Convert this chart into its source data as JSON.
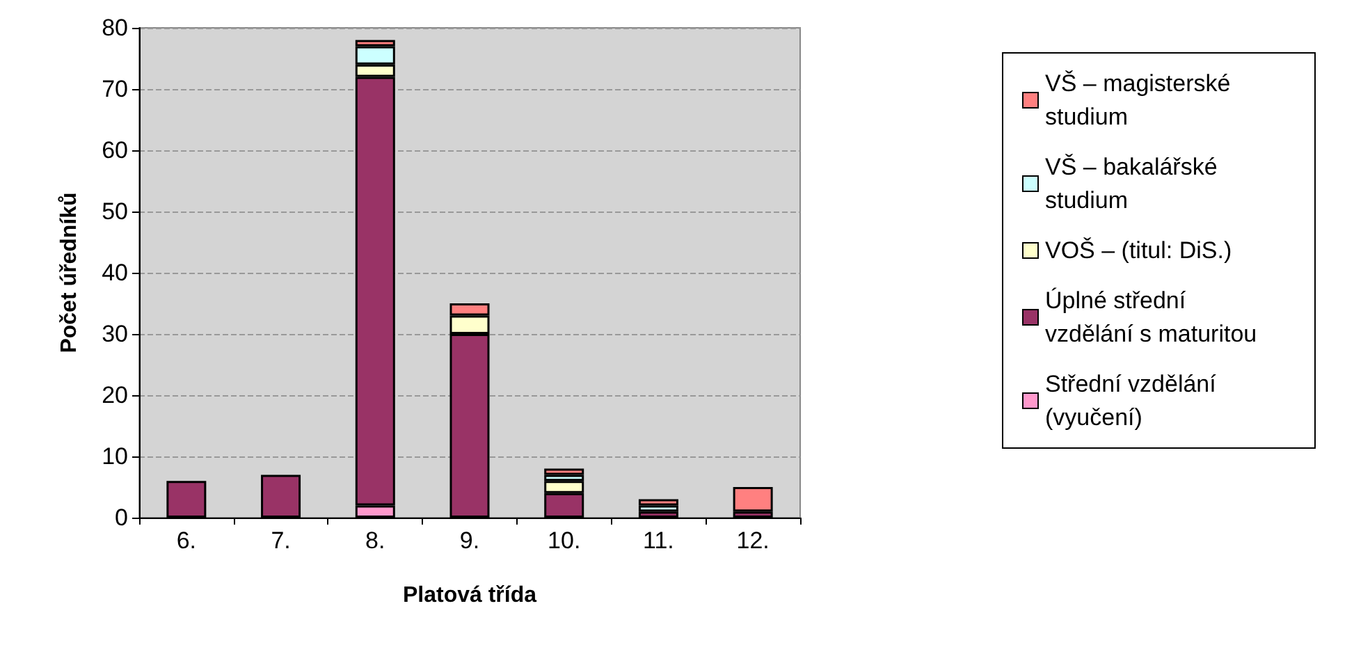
{
  "chart_data": {
    "type": "bar",
    "stacked": true,
    "xlabel": "Platová třída",
    "ylabel": "Počet úředníků",
    "categories": [
      "6.",
      "7.",
      "8.",
      "9.",
      "10.",
      "11.",
      "12."
    ],
    "series": [
      {
        "name": "Střední vzdělání (vyučení)",
        "color": "#ff99cc",
        "values": [
          0,
          0,
          2,
          0,
          0,
          0,
          0
        ]
      },
      {
        "name": "Úplné střední vzdělání s maturitou",
        "color": "#993366",
        "values": [
          6,
          7,
          70,
          30,
          4,
          1,
          1
        ]
      },
      {
        "name": "VOŠ – (titul: DiS.)",
        "color": "#ffffcc",
        "values": [
          0,
          0,
          2,
          3,
          2,
          0,
          0
        ]
      },
      {
        "name": "VŠ – bakalářské studium",
        "color": "#ccffff",
        "values": [
          0,
          0,
          3,
          0,
          1,
          1,
          0
        ]
      },
      {
        "name": "VŠ – magisterské studium",
        "color": "#ff8080",
        "values": [
          0,
          0,
          1,
          2,
          1,
          1,
          4
        ]
      }
    ],
    "ylim": [
      0,
      80
    ],
    "yticks": [
      0,
      10,
      20,
      30,
      40,
      50,
      60,
      70,
      80
    ],
    "grid": "y",
    "legend": "right"
  }
}
